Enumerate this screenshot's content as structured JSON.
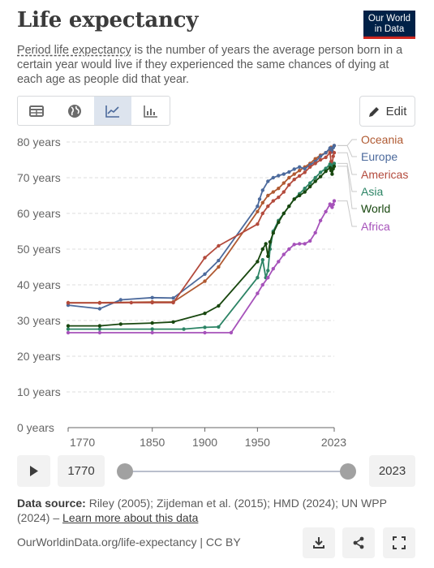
{
  "header": {
    "title": "Life expectancy",
    "logo": "Our World in Data",
    "subtitle_term": "Period life expectancy",
    "subtitle_rest": " is the number of years the average person born in a certain year would live if they experienced the same chances of dying at each age as people did that year."
  },
  "toolbar": {
    "tabs": [
      "table-icon",
      "map-icon",
      "line-chart-icon",
      "bar-chart-icon"
    ],
    "active_tab": 2,
    "edit_label": "Edit"
  },
  "timeline": {
    "start_year": "1770",
    "end_year": "2023",
    "start_fraction": 0,
    "end_fraction": 1
  },
  "source": {
    "label": "Data source:",
    "text": " Riley (2005); Zijdeman et al. (2015); HMD (2024); UN WPP (2024) – ",
    "link": "Learn more about this data"
  },
  "footer": {
    "url": "OurWorldinData.org/life-expectancy | CC BY",
    "buttons": [
      "download-icon",
      "share-icon",
      "fullscreen-icon"
    ]
  },
  "colors": {
    "Oceania": "#a2559c",
    "Europe": "#4c6a9c",
    "Americas": "#b16214",
    "Asia": "#00847e",
    "World": "#18470f",
    "Africa": "#a652ba"
  },
  "chart_data": {
    "type": "line",
    "title": "Life expectancy",
    "ylim": [
      0,
      80
    ],
    "xlim": [
      1770,
      2023
    ],
    "y_ticks": [
      "0 years",
      "10 years",
      "20 years",
      "30 years",
      "40 years",
      "50 years",
      "60 years",
      "70 years",
      "80 years"
    ],
    "x_ticks": [
      "1770",
      "1850",
      "1900",
      "1950",
      "2023"
    ],
    "grid": "horizontal dashed",
    "legend_placement": "right",
    "series": [
      {
        "name": "Oceania",
        "color": "#b05a32",
        "x": [
          1770,
          1800,
          1850,
          1870,
          1900,
          1913,
          1950,
          1955,
          1960,
          1965,
          1970,
          1975,
          1980,
          1985,
          1990,
          1995,
          2000,
          2005,
          2010,
          2015,
          2019,
          2020,
          2021,
          2022,
          2023
        ],
        "y": [
          35,
          35,
          35.2,
          35.2,
          41,
          45,
          60.5,
          63,
          65,
          66,
          67,
          68.5,
          70,
          71,
          72,
          73,
          74,
          75.3,
          76.3,
          77,
          78,
          78.5,
          77.5,
          78.5,
          79
        ]
      },
      {
        "name": "Europe",
        "color": "#4c6a9c",
        "x": [
          1770,
          1800,
          1820,
          1850,
          1870,
          1900,
          1913,
          1950,
          1952,
          1955,
          1960,
          1965,
          1970,
          1975,
          1980,
          1985,
          1990,
          1995,
          2000,
          2005,
          2010,
          2015,
          2019,
          2020,
          2021,
          2022,
          2023
        ],
        "y": [
          34.3,
          33.3,
          35.8,
          36.4,
          36.3,
          43,
          46.8,
          62,
          64,
          66.5,
          69,
          70,
          70.6,
          71,
          71.6,
          72.4,
          73,
          72.5,
          73.6,
          74.5,
          76,
          77,
          78.3,
          77.4,
          77.2,
          78.4,
          79
        ]
      },
      {
        "name": "Americas",
        "color": "#b34a3c",
        "x": [
          1770,
          1800,
          1830,
          1850,
          1870,
          1900,
          1913,
          1950,
          1955,
          1960,
          1965,
          1970,
          1975,
          1980,
          1985,
          1990,
          1995,
          2000,
          2005,
          2010,
          2015,
          2019,
          2020,
          2021,
          2022,
          2023
        ],
        "y": [
          34.9,
          34.9,
          35,
          35,
          35,
          47.6,
          50.9,
          57,
          60,
          62,
          63.5,
          64.5,
          66,
          68,
          69.5,
          70.5,
          71.5,
          73,
          74,
          75,
          75.7,
          77,
          74.5,
          73.5,
          76,
          77
        ]
      },
      {
        "name": "Asia",
        "color": "#2c8465",
        "x": [
          1770,
          1800,
          1850,
          1880,
          1900,
          1913,
          1950,
          1955,
          1958,
          1960,
          1962,
          1965,
          1970,
          1975,
          1980,
          1985,
          1990,
          1995,
          2000,
          2005,
          2010,
          2015,
          2019,
          2020,
          2021,
          2022,
          2023
        ],
        "y": [
          27.6,
          27.6,
          27.6,
          27.6,
          28.1,
          28.2,
          42,
          47,
          42,
          44,
          50,
          55,
          58,
          60,
          62,
          64,
          65.5,
          67,
          68.5,
          70,
          71.5,
          72.6,
          73.8,
          73.5,
          72.5,
          73.5,
          74
        ]
      },
      {
        "name": "World",
        "color": "#18470f",
        "x": [
          1770,
          1800,
          1820,
          1850,
          1870,
          1900,
          1913,
          1950,
          1955,
          1958,
          1960,
          1962,
          1965,
          1970,
          1975,
          1980,
          1985,
          1990,
          1995,
          2000,
          2005,
          2010,
          2015,
          2019,
          2020,
          2021,
          2022,
          2023
        ],
        "y": [
          28.5,
          28.5,
          29,
          29.3,
          29.6,
          32,
          34.1,
          46.5,
          50,
          51.5,
          48,
          52,
          54.5,
          57.5,
          60,
          62,
          64,
          65,
          66,
          67.5,
          69,
          70.3,
          71.8,
          72.8,
          72,
          71,
          72.5,
          73.2
        ]
      },
      {
        "name": "Africa",
        "color": "#a652ba",
        "x": [
          1770,
          1800,
          1850,
          1900,
          1925,
          1950,
          1955,
          1960,
          1965,
          1970,
          1975,
          1980,
          1985,
          1990,
          1995,
          2000,
          2005,
          2010,
          2015,
          2019,
          2020,
          2021,
          2022,
          2023
        ],
        "y": [
          26.6,
          26.6,
          26.6,
          26.6,
          26.6,
          37.6,
          40,
          42,
          44.5,
          46.5,
          48.5,
          50,
          51.3,
          51.5,
          51.5,
          52.3,
          54.6,
          58,
          60.5,
          62.6,
          62.2,
          61.7,
          62.5,
          63.5
        ]
      }
    ]
  }
}
